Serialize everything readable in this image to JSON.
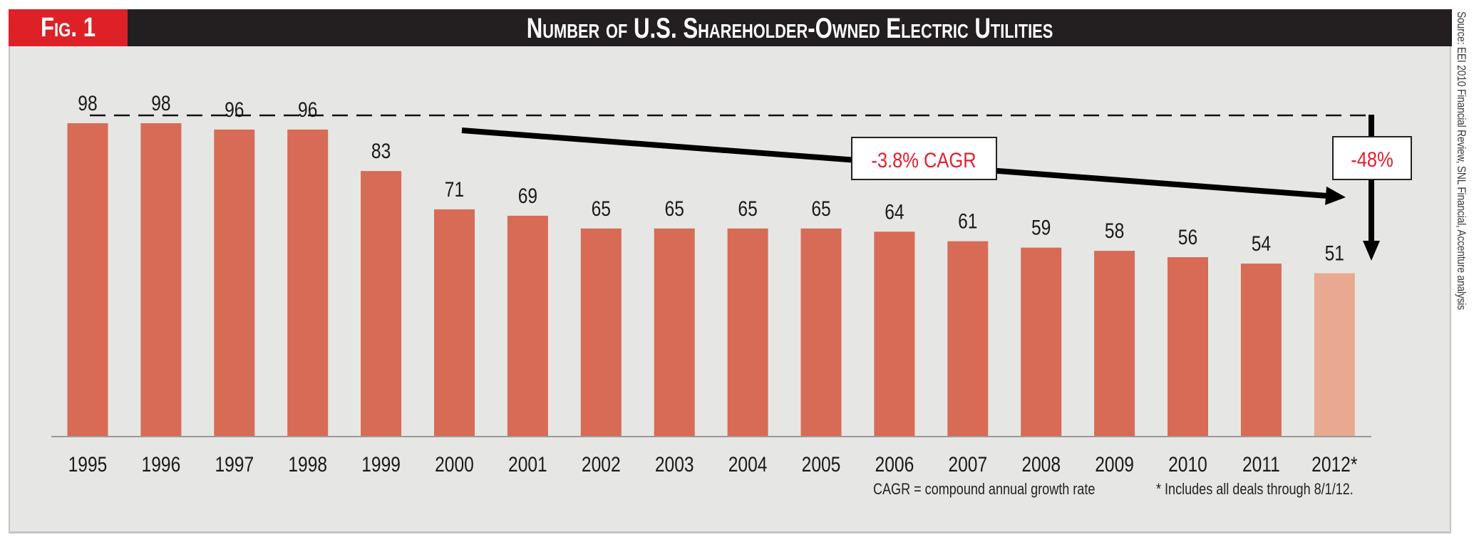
{
  "header": {
    "fig_label": "Fig. 1",
    "title": "Number of U.S. Shareholder-Owned Electric Utilities"
  },
  "source": "Source: EEI 2010 Financial Review, SNL Financial, Accenture analysis",
  "footnotes": {
    "cagr_definition": "CAGR = compound annual growth rate",
    "asterisk_note": "* Includes all deals through 8/1/12."
  },
  "annotations": {
    "cagr_label": "-3.8% CAGR",
    "total_change_label": "-48%"
  },
  "colors": {
    "bar": "#d76b56",
    "bar_highlight": "#e8a990",
    "accent_red": "#e31e2d",
    "header_red": "#dd2127",
    "header_dark": "#231f20",
    "panel_bg": "#e6e7e4"
  },
  "chart_data": {
    "type": "bar",
    "title": "Number of U.S. Shareholder-Owned Electric Utilities",
    "xlabel": "",
    "ylabel": "",
    "categories": [
      "1995",
      "1996",
      "1997",
      "1998",
      "1999",
      "2000",
      "2001",
      "2002",
      "2003",
      "2004",
      "2005",
      "2006",
      "2007",
      "2008",
      "2009",
      "2010",
      "2011",
      "2012*"
    ],
    "values": [
      98,
      98,
      96,
      96,
      83,
      71,
      69,
      65,
      65,
      65,
      65,
      64,
      61,
      59,
      58,
      56,
      54,
      51
    ],
    "highlighted_categories": [
      "2012*"
    ],
    "ylim": [
      0,
      100
    ],
    "grid": false,
    "y_axis_visible": false,
    "data_labels": true,
    "reference_line": {
      "value": 98,
      "style": "dashed",
      "from": "1995",
      "to": "2012*"
    },
    "annotations": [
      {
        "text": "-3.8% CAGR",
        "type": "trend-arrow",
        "from": "2000",
        "to": "2012*"
      },
      {
        "text": "-48%",
        "type": "drop-arrow",
        "from_value": 98,
        "to_value": 51
      }
    ]
  }
}
